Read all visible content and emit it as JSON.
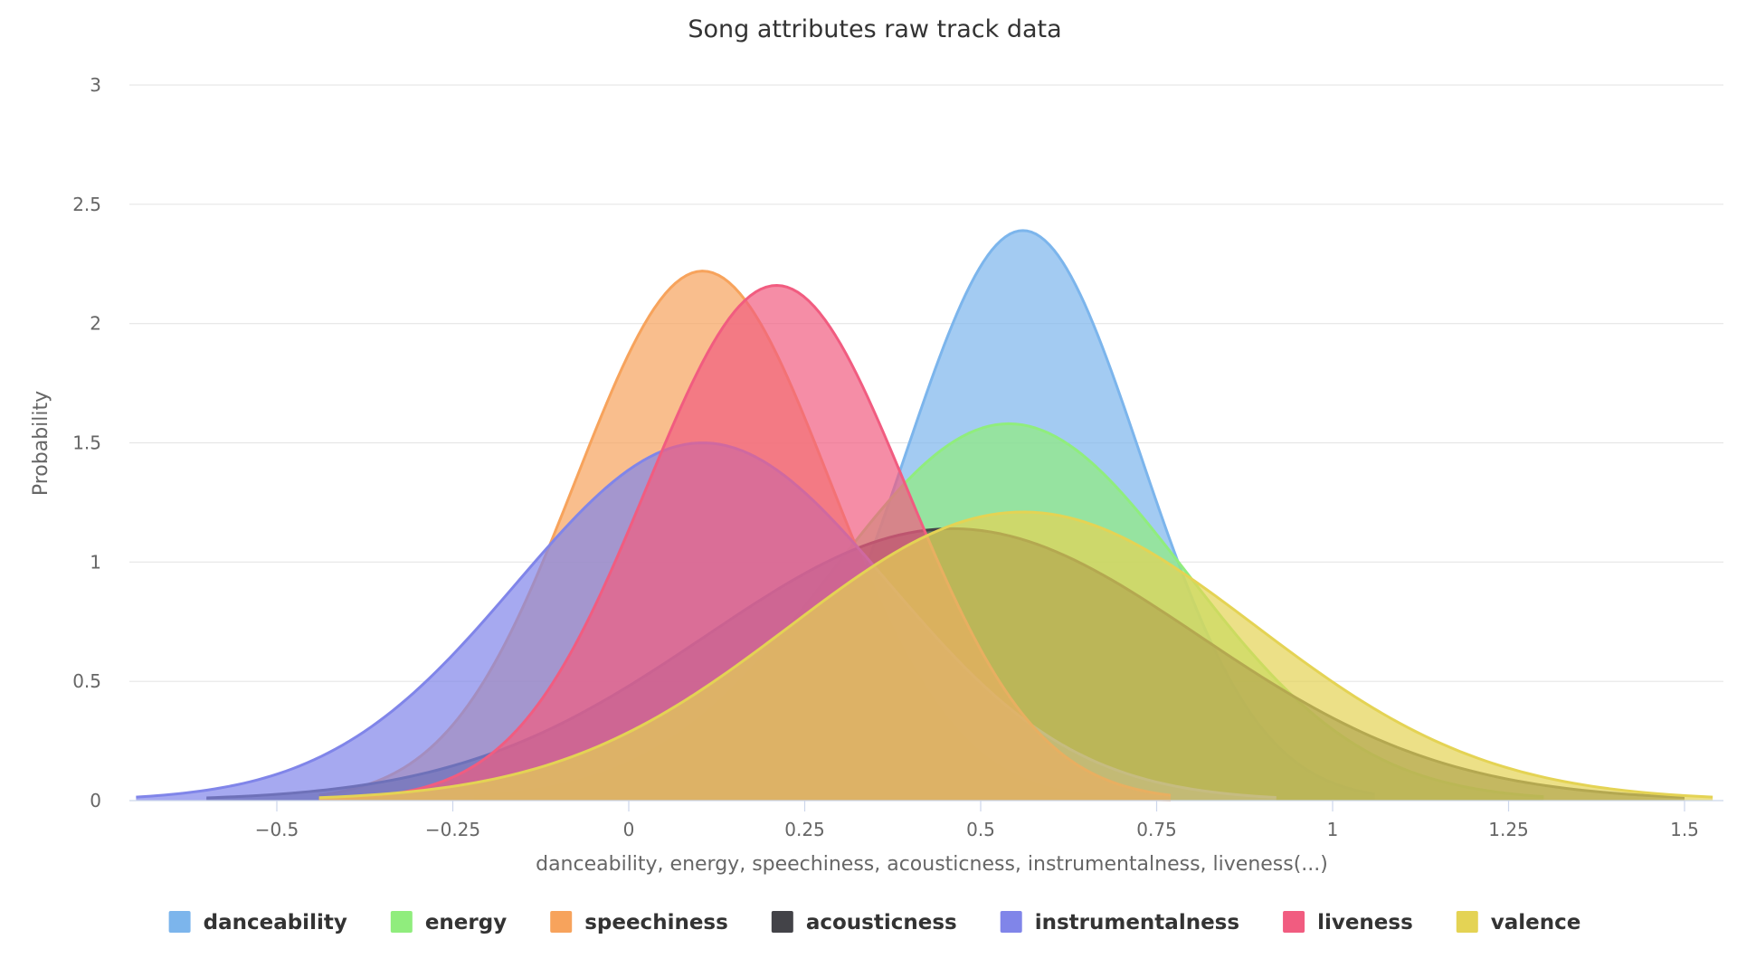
{
  "chart_data": {
    "type": "area",
    "title": "Song attributes raw track data",
    "xlabel": "danceability, energy, speechiness, acousticness, instrumentalness, liveness(...)",
    "ylabel": "Probability",
    "xlim": [
      -0.7,
      1.55
    ],
    "ylim": [
      0,
      3
    ],
    "xticks": [
      -0.5,
      -0.25,
      0,
      0.25,
      0.5,
      0.75,
      1,
      1.25,
      1.5
    ],
    "xtick_labels": [
      "−0.5",
      "−0.25",
      "0",
      "0.25",
      "0.5",
      "0.75",
      "1",
      "1.25",
      "1.5"
    ],
    "yticks": [
      0,
      0.5,
      1,
      1.5,
      2,
      2.5,
      3
    ],
    "ytick_labels": [
      "0",
      "0.5",
      "1",
      "1.5",
      "2",
      "2.5",
      "3"
    ],
    "grid": true,
    "legend_position": "bottom-center",
    "series": [
      {
        "name": "danceability",
        "color": "#7cb5ec",
        "mean": 0.56,
        "std": 0.167,
        "peak": 2.39,
        "x_start": 0.06,
        "x_end": 1.06
      },
      {
        "name": "energy",
        "color": "#90ed7d",
        "mean": 0.54,
        "std": 0.252,
        "peak": 1.58,
        "x_start": -0.22,
        "x_end": 1.3
      },
      {
        "name": "speechiness",
        "color": "#f7a35c",
        "mean": 0.105,
        "std": 0.18,
        "peak": 2.22,
        "x_start": -0.44,
        "x_end": 0.77
      },
      {
        "name": "acousticness",
        "color": "#434348",
        "mean": 0.46,
        "std": 0.35,
        "peak": 1.14,
        "x_start": -0.6,
        "x_end": 1.5
      },
      {
        "name": "instrumentalness",
        "color": "#8085e9",
        "mean": 0.105,
        "std": 0.265,
        "peak": 1.5,
        "x_start": -0.7,
        "x_end": 0.92
      },
      {
        "name": "liveness",
        "color": "#f15c80",
        "mean": 0.21,
        "std": 0.185,
        "peak": 2.16,
        "x_start": -0.44,
        "x_end": 0.77
      },
      {
        "name": "valence",
        "color": "#e4d354",
        "mean": 0.56,
        "std": 0.33,
        "peak": 1.21,
        "x_start": -0.44,
        "x_end": 1.54
      }
    ]
  }
}
